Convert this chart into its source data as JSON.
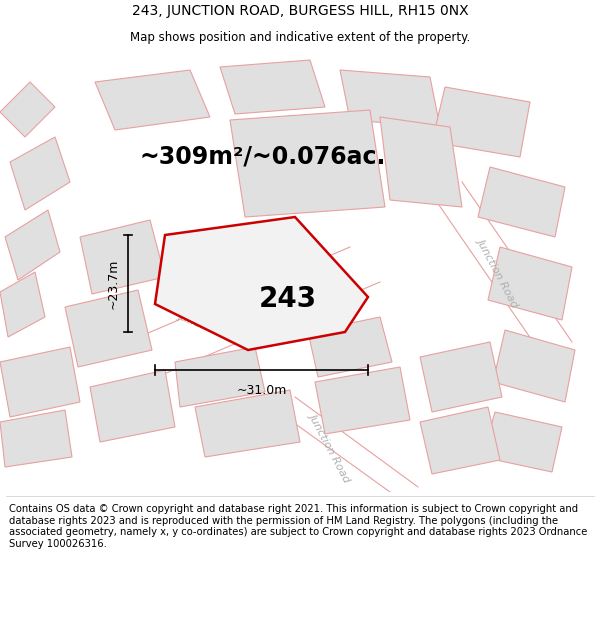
{
  "title": "243, JUNCTION ROAD, BURGESS HILL, RH15 0NX",
  "subtitle": "Map shows position and indicative extent of the property.",
  "area_label": "~309m²/~0.076ac.",
  "width_label": "~31.0m",
  "height_label": "~23.7m",
  "number_label": "243",
  "footer": "Contains OS data © Crown copyright and database right 2021. This information is subject to Crown copyright and database rights 2023 and is reproduced with the permission of HM Land Registry. The polygons (including the associated geometry, namely x, y co-ordinates) are subject to Crown copyright and database rights 2023 Ordnance Survey 100026316.",
  "map_bg": "#f2f2f2",
  "building_fill": "#e0e0e0",
  "building_edge": "#e8a0a0",
  "road_fill": "#f2f2f2",
  "plot_outline": "#cc0000",
  "plot_fill": "#f2f2f2",
  "street_label_color": "#b0b0b0",
  "title_fontsize": 10,
  "subtitle_fontsize": 8.5,
  "area_fontsize": 17,
  "number_fontsize": 20,
  "footer_fontsize": 7.2,
  "street_fontsize": 8,
  "dim_fontsize": 9,
  "lw_building": 0.8,
  "lw_plot": 1.8
}
